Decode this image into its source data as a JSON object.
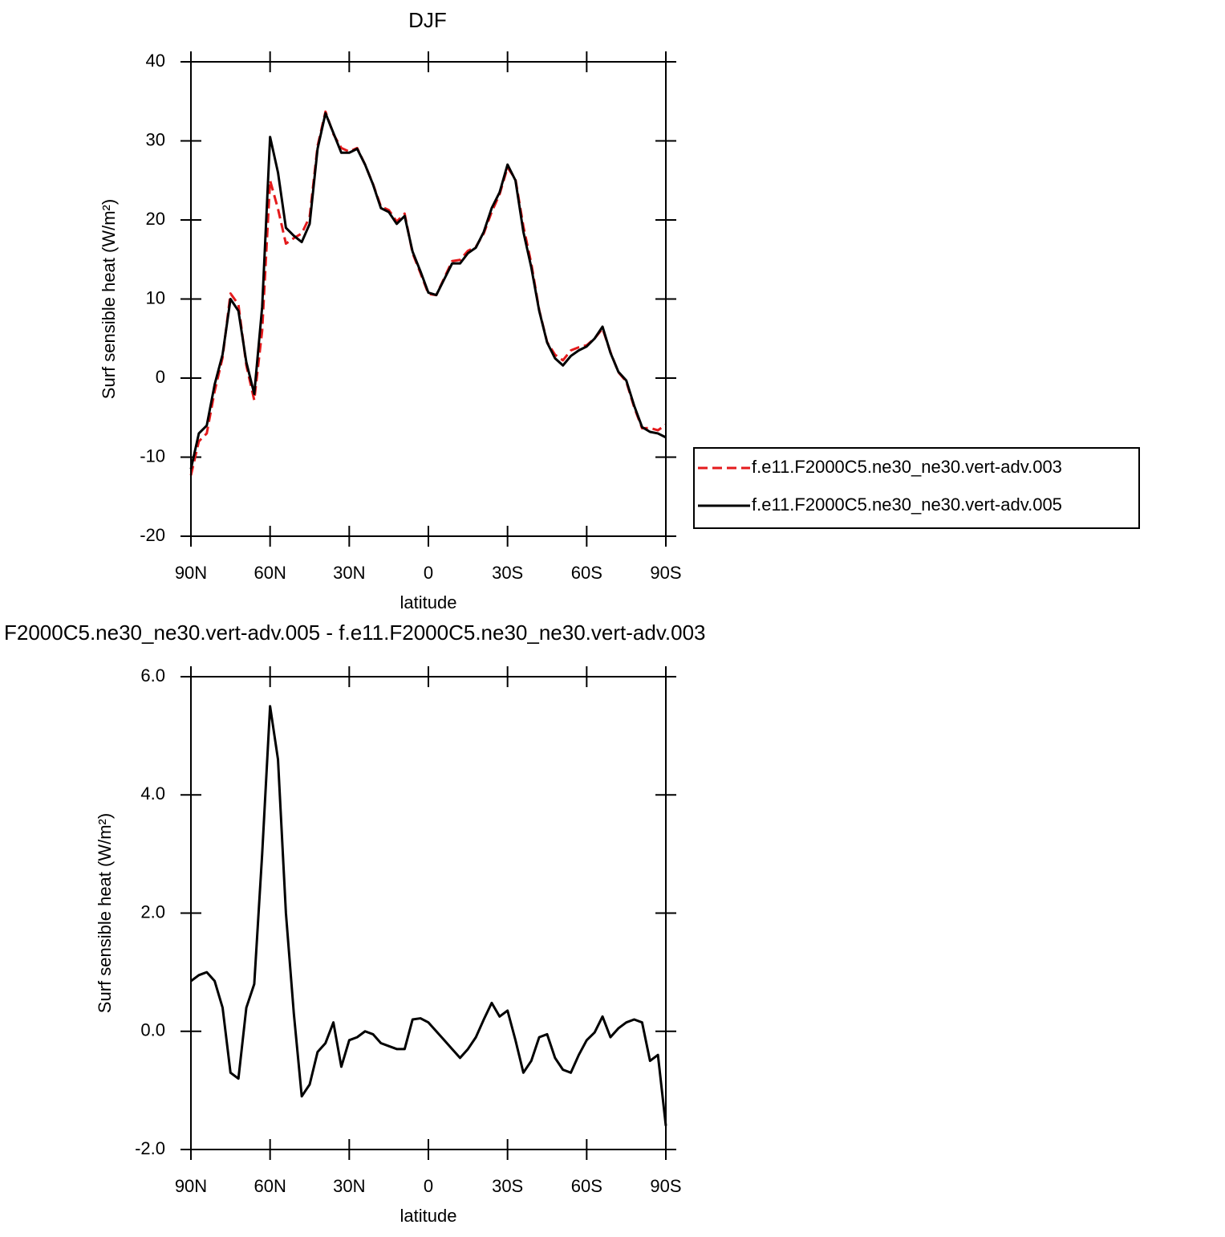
{
  "chart_data": [
    {
      "type": "line",
      "title": "DJF",
      "xlabel": "latitude",
      "ylabel": "Surf sensible heat (W/m²)",
      "x": [
        90,
        87,
        84,
        81,
        78,
        75,
        72,
        69,
        66,
        63,
        60,
        57,
        54,
        51,
        48,
        45,
        42,
        39,
        36,
        33,
        30,
        27,
        24,
        21,
        18,
        15,
        12,
        9,
        6,
        3,
        0,
        -3,
        -6,
        -9,
        -12,
        -15,
        -18,
        -21,
        -24,
        -27,
        -30,
        -33,
        -36,
        -39,
        -42,
        -45,
        -48,
        -51,
        -54,
        -57,
        -60,
        -63,
        -66,
        -69,
        -72,
        -75,
        -78,
        -81,
        -84,
        -87,
        -90
      ],
      "series": [
        {
          "name": "f.e11.F2000C5.ne30_ne30.vert-adv.003",
          "color": "#e41a1c",
          "dashed": true,
          "values": [
            -12.3,
            -8,
            -7,
            -1.65,
            2.6,
            10.7,
            9.3,
            1.6,
            -2.8,
            6,
            25,
            21.4,
            17,
            17.7,
            18.3,
            20.4,
            29.35,
            33.7,
            30.85,
            29.1,
            28.65,
            29.1,
            27,
            24.55,
            21.7,
            21.25,
            19.8,
            20.8,
            15.8,
            13.28,
            10.65,
            10.5,
            12.65,
            14.8,
            14.95,
            16.1,
            16.6,
            18.3,
            21.02,
            23.25,
            26.65,
            25.15,
            19.2,
            14.5,
            8.6,
            4.55,
            2.95,
            2.25,
            3.5,
            3.9,
            4.15,
            5.02,
            6.25,
            3.3,
            0.75,
            -0.45,
            -3.7,
            -6.35,
            -6.3,
            -6.6,
            -5.9
          ]
        },
        {
          "name": "f.e11.F2000C5.ne30_ne30.vert-adv.005",
          "color": "#000000",
          "dashed": false,
          "values": [
            -11.5,
            -7,
            -6,
            -0.8,
            3,
            10,
            8.5,
            2,
            -2,
            9,
            30.5,
            26,
            19,
            18,
            17.2,
            19.5,
            29,
            33.5,
            31,
            28.5,
            28.5,
            29,
            27,
            24.5,
            21.5,
            21,
            19.5,
            20.5,
            16,
            13.5,
            10.8,
            10.5,
            12.5,
            14.5,
            14.5,
            15.8,
            16.5,
            18.5,
            21.5,
            23.5,
            27,
            25,
            18.5,
            14,
            8.5,
            4.5,
            2.5,
            1.6,
            2.8,
            3.5,
            4,
            5,
            6.5,
            3.2,
            0.8,
            -0.3,
            -3.5,
            -6.2,
            -6.8,
            -7,
            -7.5
          ]
        }
      ],
      "xlim": [
        90,
        -90
      ],
      "xticks": [
        {
          "value": 90,
          "label": "90N"
        },
        {
          "value": 60,
          "label": "60N"
        },
        {
          "value": 30,
          "label": "30N"
        },
        0,
        {
          "value": -30,
          "label": "30S"
        },
        {
          "value": -60,
          "label": "60S"
        },
        {
          "value": -90,
          "label": "90S"
        }
      ],
      "ylim": [
        -20,
        40
      ],
      "yticks": [
        -20,
        -10,
        0,
        10,
        20,
        30,
        40
      ],
      "legend": "right"
    },
    {
      "type": "line",
      "title": "F2000C5.ne30_ne30.vert-adv.005 - f.e11.F2000C5.ne30_ne30.vert-adv.003",
      "xlabel": "latitude",
      "ylabel": "Surf sensible heat (W/m²)",
      "x": [
        90,
        87,
        84,
        81,
        78,
        75,
        72,
        69,
        66,
        63,
        60,
        57,
        54,
        51,
        48,
        45,
        42,
        39,
        36,
        33,
        30,
        27,
        24,
        21,
        18,
        15,
        12,
        9,
        6,
        3,
        0,
        -3,
        -6,
        -9,
        -12,
        -15,
        -18,
        -21,
        -24,
        -27,
        -30,
        -33,
        -36,
        -39,
        -42,
        -45,
        -48,
        -51,
        -54,
        -57,
        -60,
        -63,
        -66,
        -69,
        -72,
        -75,
        -78,
        -81,
        -84,
        -87,
        -90
      ],
      "color": "#000000",
      "values": [
        0.85,
        0.95,
        1.0,
        0.85,
        0.4,
        -0.7,
        -0.8,
        0.4,
        0.8,
        3.0,
        5.5,
        4.6,
        2.0,
        0.3,
        -1.1,
        -0.9,
        -0.35,
        -0.2,
        0.15,
        -0.6,
        -0.15,
        -0.1,
        0.0,
        -0.05,
        -0.2,
        -0.25,
        -0.3,
        -0.3,
        0.2,
        0.22,
        0.15,
        0.0,
        -0.15,
        -0.3,
        -0.45,
        -0.3,
        -0.1,
        0.2,
        0.48,
        0.25,
        0.35,
        -0.15,
        -0.7,
        -0.5,
        -0.1,
        -0.05,
        -0.45,
        -0.65,
        -0.7,
        -0.4,
        -0.15,
        -0.02,
        0.25,
        -0.1,
        0.05,
        0.15,
        0.2,
        0.15,
        -0.5,
        -0.4,
        -1.6
      ],
      "xlim": [
        90,
        -90
      ],
      "xticks": [
        {
          "value": 90,
          "label": "90N"
        },
        {
          "value": 60,
          "label": "60N"
        },
        {
          "value": 30,
          "label": "30N"
        },
        0,
        {
          "value": -30,
          "label": "30S"
        },
        {
          "value": -60,
          "label": "60S"
        },
        {
          "value": -90,
          "label": "90S"
        }
      ],
      "ylim": [
        -2,
        6
      ],
      "yticks": [
        {
          "value": -2,
          "label": "-2.0"
        },
        {
          "value": 0,
          "label": "0.0"
        },
        {
          "value": 2,
          "label": "2.0"
        },
        {
          "value": 4,
          "label": "4.0"
        },
        {
          "value": 6,
          "label": "6.0"
        }
      ]
    }
  ]
}
